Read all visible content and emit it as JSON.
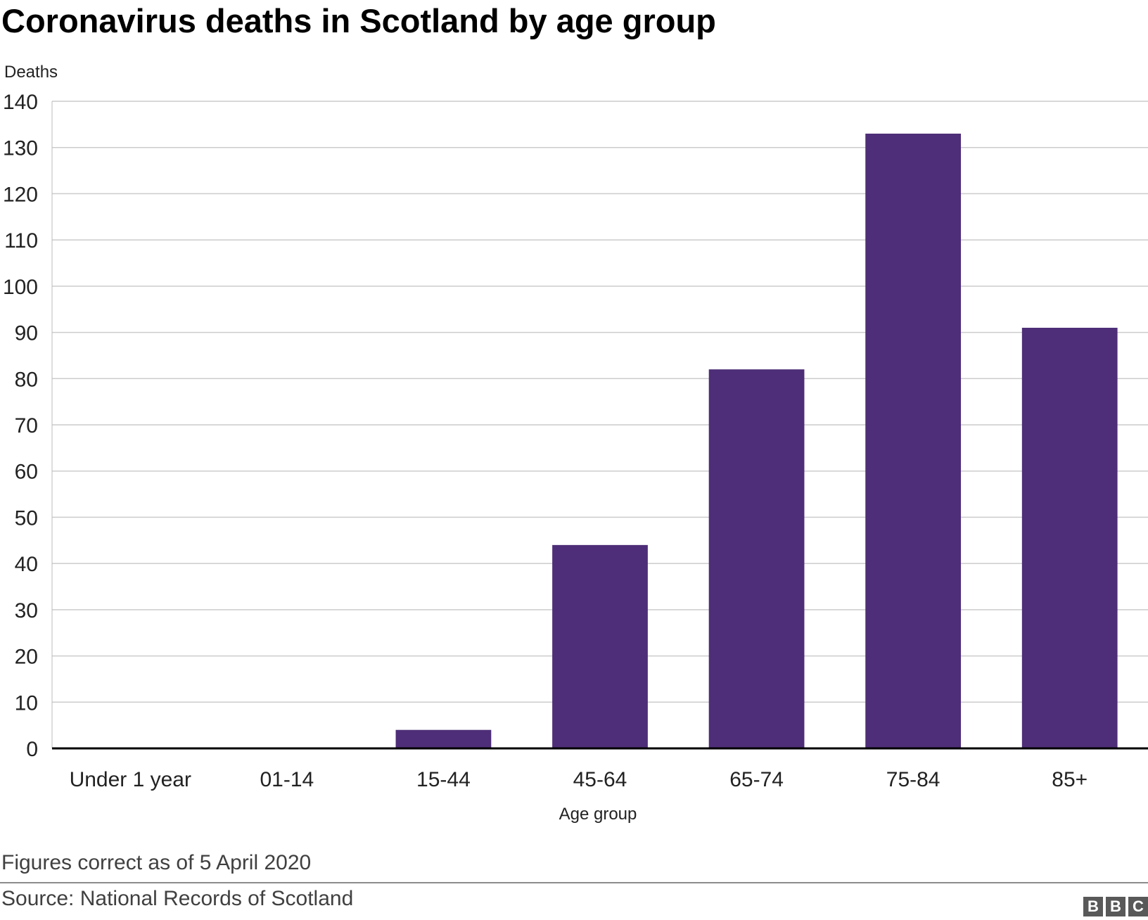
{
  "chart_data": {
    "type": "bar",
    "title": "Coronavirus deaths in Scotland by age group",
    "ylabel": "Deaths",
    "xlabel": "Age group",
    "categories": [
      "Under 1 year",
      "01-14",
      "15-44",
      "45-64",
      "65-74",
      "75-84",
      "85+"
    ],
    "values": [
      0,
      0,
      4,
      44,
      82,
      133,
      91
    ],
    "ylim": [
      0,
      140
    ],
    "yticks": [
      0,
      10,
      20,
      30,
      40,
      50,
      60,
      70,
      80,
      90,
      100,
      110,
      120,
      130,
      140
    ],
    "grid": true,
    "bar_color": "#4e2e78",
    "note": "Figures correct as of 5 April 2020",
    "source": "Source: National Records of Scotland"
  },
  "branding": {
    "letters": [
      "B",
      "B",
      "C"
    ]
  }
}
